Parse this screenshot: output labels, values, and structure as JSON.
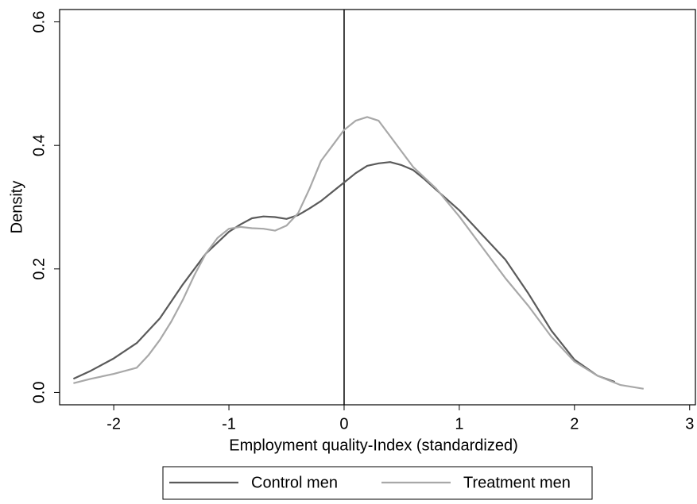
{
  "chart_data": {
    "type": "line",
    "x_label": "Employment quality-Index (standardized)",
    "y_label": "Density",
    "xlim": [
      -2.47,
      3.05
    ],
    "ylim": [
      -0.02,
      0.62
    ],
    "xticks": [
      -2,
      -1,
      0,
      1,
      2,
      3
    ],
    "yticks": [
      {
        "value": 0,
        "label": "0.0"
      },
      0.2,
      0.4,
      0.6
    ],
    "reference_line_x": 0,
    "legend": "bottom",
    "series": [
      {
        "name": "Control men",
        "color": "#5a5a5a",
        "x": [
          -2.35,
          -2.2,
          -2.0,
          -1.8,
          -1.6,
          -1.4,
          -1.2,
          -1.0,
          -0.9,
          -0.8,
          -0.7,
          -0.6,
          -0.5,
          -0.4,
          -0.3,
          -0.2,
          -0.1,
          0,
          0.1,
          0.2,
          0.3,
          0.4,
          0.5,
          0.6,
          0.7,
          0.8,
          1.0,
          1.2,
          1.4,
          1.6,
          1.8,
          2.0,
          2.2,
          2.35
        ],
        "values": [
          0.022,
          0.035,
          0.055,
          0.08,
          0.12,
          0.175,
          0.225,
          0.26,
          0.272,
          0.282,
          0.285,
          0.284,
          0.281,
          0.287,
          0.298,
          0.31,
          0.325,
          0.34,
          0.355,
          0.367,
          0.371,
          0.373,
          0.368,
          0.36,
          0.345,
          0.328,
          0.295,
          0.255,
          0.215,
          0.16,
          0.1,
          0.053,
          0.027,
          0.017
        ]
      },
      {
        "name": "Treatment men",
        "color": "#a8a8a8",
        "x": [
          -2.35,
          -2.2,
          -2.0,
          -1.8,
          -1.7,
          -1.6,
          -1.5,
          -1.4,
          -1.3,
          -1.2,
          -1.1,
          -1.0,
          -0.9,
          -0.8,
          -0.7,
          -0.6,
          -0.5,
          -0.4,
          -0.3,
          -0.2,
          -0.1,
          0,
          0.1,
          0.2,
          0.3,
          0.4,
          0.5,
          0.6,
          0.8,
          1.0,
          1.2,
          1.4,
          1.6,
          1.8,
          2.0,
          2.2,
          2.4,
          2.6
        ],
        "values": [
          0.015,
          0.022,
          0.03,
          0.04,
          0.06,
          0.085,
          0.115,
          0.15,
          0.19,
          0.225,
          0.25,
          0.265,
          0.268,
          0.266,
          0.265,
          0.262,
          0.27,
          0.29,
          0.33,
          0.375,
          0.4,
          0.425,
          0.44,
          0.446,
          0.44,
          0.415,
          0.39,
          0.365,
          0.33,
          0.285,
          0.235,
          0.185,
          0.14,
          0.09,
          0.05,
          0.027,
          0.012,
          0.006
        ]
      }
    ]
  }
}
